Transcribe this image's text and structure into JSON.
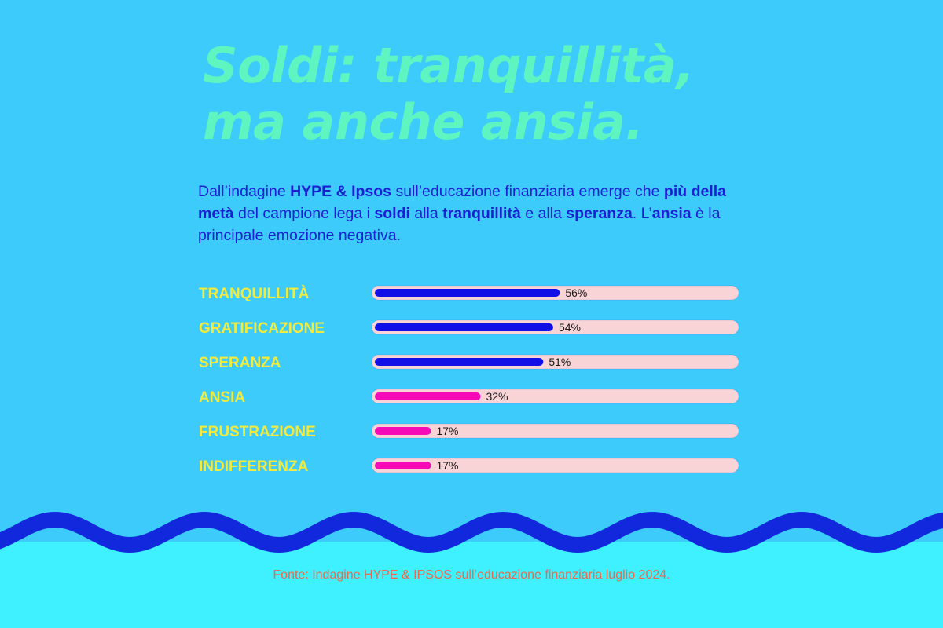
{
  "colors": {
    "background": "#3ccbfb",
    "bottom_band": "#3ff0fe",
    "wave": "#1228dd",
    "title": "#5ef5c1",
    "intro_text": "#1b1fd4",
    "category_label": "#f2ea3c",
    "track": "#f8d4d6",
    "bar_positive": "#1010e6",
    "bar_negative": "#f60ab8",
    "value_text": "#1a1a1a",
    "source_text": "#e86a4a"
  },
  "title": {
    "line1": "Soldi: tranquillità,",
    "line2": "ma anche ansia."
  },
  "intro": {
    "p1": "Dall’indagine ",
    "b1": "HYPE & Ipsos",
    "p2": " sull’educazione finanziaria emerge che ",
    "b2": "più della metà",
    "p3": " del campione lega i ",
    "b3": "soldi",
    "p4": " alla ",
    "b4": "tranquillità",
    "p5": " e alla ",
    "b5": "speranza",
    "p6": ". L’",
    "b6": "ansia",
    "p7": " è la principale emozione negativa."
  },
  "chart_data": {
    "type": "bar",
    "orientation": "horizontal",
    "categories": [
      "TRANQUILLITÀ",
      "GRATIFICAZIONE",
      "SPERANZA",
      "ANSIA",
      "FRUSTRAZIONE",
      "INDIFFERENZA"
    ],
    "values": [
      56,
      54,
      51,
      32,
      17,
      17
    ],
    "value_labels": [
      "56%",
      "54%",
      "51%",
      "32%",
      "17%",
      "17%"
    ],
    "sentiment": [
      "positive",
      "positive",
      "positive",
      "negative",
      "negative",
      "negative"
    ],
    "xlim": [
      0,
      100
    ],
    "grid": false,
    "legend": "none"
  },
  "source": "Fonte: Indagine HYPE & IPSOS sull’educazione finanziaria luglio 2024."
}
